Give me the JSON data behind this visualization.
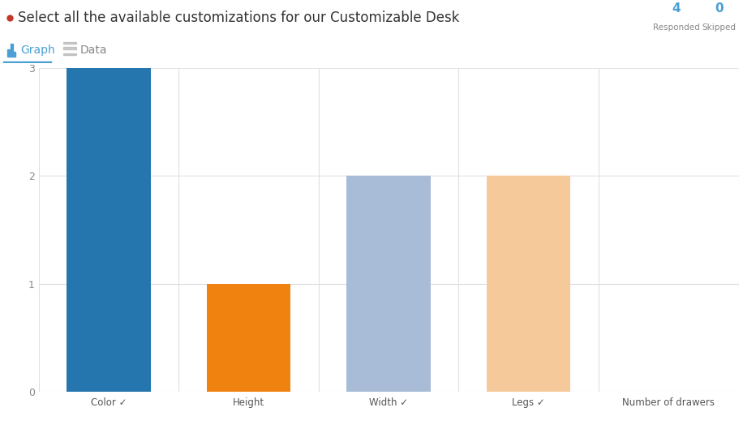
{
  "title": "Select all the available customizations for our Customizable Desk",
  "categories": [
    "Color ✓",
    "Height",
    "Width ✓",
    "Legs ✓",
    "Number of drawers"
  ],
  "values": [
    3,
    1,
    2,
    2,
    0
  ],
  "bar_colors": [
    "#2575ae",
    "#f0820f",
    "#a8bcd8",
    "#f5c99a",
    "#cccccc"
  ],
  "background_color": "#ffffff",
  "ylim": [
    0,
    3
  ],
  "yticks": [
    0,
    1,
    2,
    3
  ],
  "responded_label": "Responded",
  "skipped_label": "Skipped",
  "responded_value": "4",
  "skipped_value": "0",
  "tab_graph": "Graph",
  "tab_data": "Data",
  "title_fontsize": 12,
  "axis_label_fontsize": 8.5,
  "tick_fontsize": 9,
  "grid_color": "#e0e0e0",
  "border_color": "#dddddd",
  "title_color": "#333333",
  "responded_color": "#4a9fd4",
  "skipped_color": "#4a9fd4",
  "label_color": "#888888",
  "active_tab_color": "#4a9fd4",
  "inactive_tab_color": "#888888"
}
